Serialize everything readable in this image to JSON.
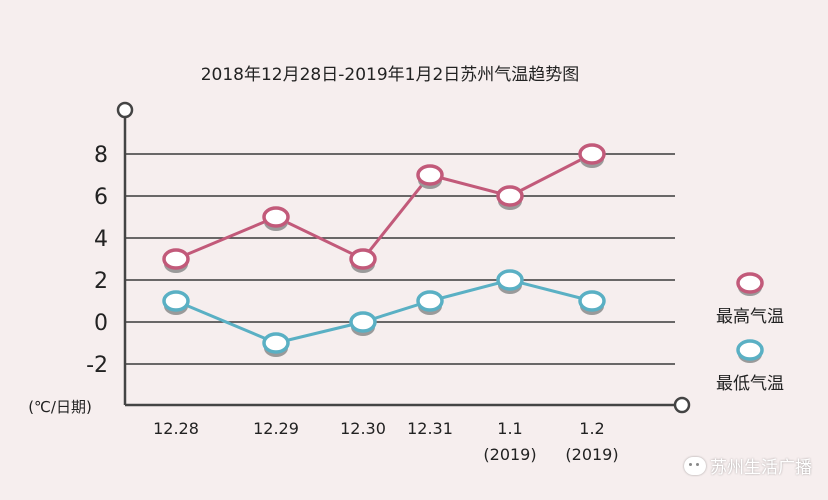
{
  "colors": {
    "background": "#f6eeee",
    "grid": "#3a3a3a",
    "axis": "#444444",
    "high_series": "#c25a7a",
    "low_series": "#5ab0c4",
    "text": "#222222"
  },
  "watermark": {
    "text": "苏州生活广播",
    "icon": "wechat-icon"
  },
  "chart_data": {
    "type": "line",
    "title": "2018年12月28日-2019年1月2日苏州气温趋势图",
    "xlabel": "",
    "ylabel": "(℃/日期)",
    "ylim": [
      -4,
      10
    ],
    "grid": true,
    "yticks": [
      8,
      6,
      4,
      2,
      0,
      -2
    ],
    "categories": [
      "12.28",
      "12.29",
      "12.30",
      "12.31",
      "1.1",
      "1.2"
    ],
    "category_sublabels": [
      "",
      "",
      "",
      "",
      "(2019)",
      "(2019)"
    ],
    "legend_position": "right",
    "series": [
      {
        "name": "最高气温",
        "values": [
          3,
          5,
          3,
          7,
          6,
          8
        ]
      },
      {
        "name": "最低气温",
        "values": [
          1,
          -1,
          0,
          1,
          2,
          1
        ]
      }
    ]
  }
}
